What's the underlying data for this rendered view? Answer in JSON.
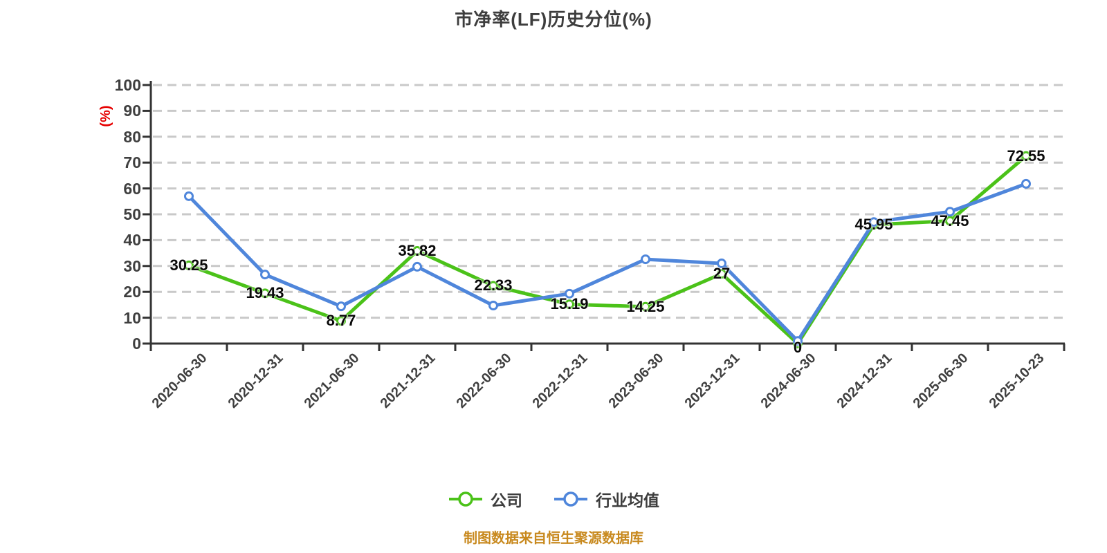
{
  "title": "市净率(LF)历史分位(%)",
  "footer": "制图数据来自恒生聚源数据库",
  "colors": {
    "company_line": "#4bc219",
    "industry_line": "#4f86db",
    "marker_fill": "#ffffff",
    "grid_line": "#c9c9c9",
    "axis_line": "#333333",
    "tick_text": "#3f3f3f",
    "title_text": "#3d3d3d",
    "y_axis_name_text": "#e60000",
    "point_label_text": "#0a0a0a",
    "footer_text": "#c8891e"
  },
  "chart_data": {
    "type": "line",
    "title": "市净率(LF)历史分位(%)",
    "ylabel": "(%)",
    "xlabel": "",
    "ylim": [
      0,
      100
    ],
    "y_tick_step": 10,
    "grid": "horizontal-dashed",
    "legend_position": "bottom-center",
    "categories": [
      "2020-06-30",
      "2020-12-31",
      "2021-06-30",
      "2021-12-31",
      "2022-06-30",
      "2022-12-31",
      "2023-06-30",
      "2023-12-31",
      "2024-06-30",
      "2024-12-31",
      "2025-06-30",
      "2025-10-23"
    ],
    "series": [
      {
        "name": "公司",
        "color": "#4bc219",
        "values": [
          30.25,
          19.43,
          8.77,
          35.82,
          22.33,
          15.19,
          14.25,
          27,
          0,
          45.95,
          47.45,
          72.55
        ],
        "labels": [
          "30.25",
          "19.43",
          "8.77",
          "35.82",
          "22.33",
          "15.19",
          "14.25",
          "27",
          "0",
          "45.95",
          "47.45",
          "72.55"
        ],
        "labels_visible": true
      },
      {
        "name": "行业均值",
        "color": "#4f86db",
        "values": [
          57,
          26.7,
          14.4,
          29.7,
          14.7,
          19.3,
          32.6,
          31,
          1,
          47,
          51,
          61.8
        ],
        "labels": [],
        "labels_visible": false
      }
    ]
  }
}
